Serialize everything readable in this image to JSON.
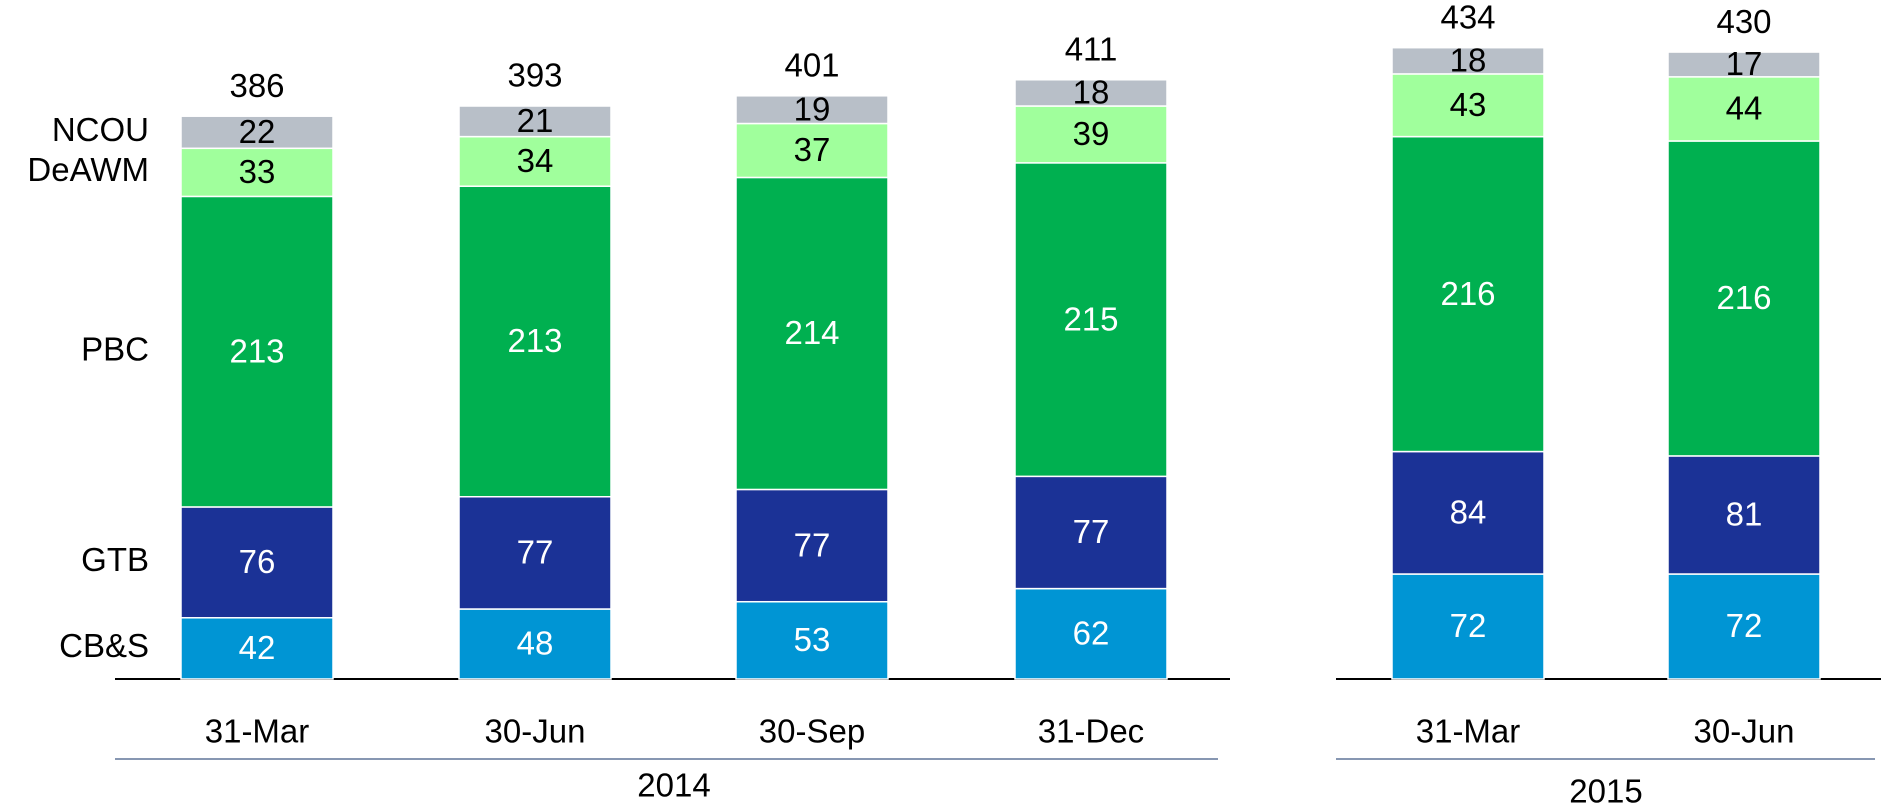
{
  "chart_data": {
    "type": "stacked_bar",
    "groups": [
      {
        "label": "2014",
        "categories": [
          "31-Mar",
          "30-Jun",
          "30-Sep",
          "31-Dec"
        ]
      },
      {
        "label": "2015",
        "categories": [
          "31-Mar",
          "30-Jun"
        ]
      }
    ],
    "series": [
      {
        "name": "CB&S",
        "color": "#0095d4",
        "label_color": "#ffffff",
        "values": [
          42,
          48,
          53,
          62,
          72,
          72
        ]
      },
      {
        "name": "GTB",
        "color": "#1b3296",
        "label_color": "#ffffff",
        "values": [
          76,
          77,
          77,
          77,
          84,
          81
        ]
      },
      {
        "name": "PBC",
        "color": "#00b050",
        "label_color": "#ffffff",
        "values": [
          213,
          213,
          214,
          215,
          216,
          216
        ]
      },
      {
        "name": "DeAWM",
        "color": "#a0ff9c",
        "label_color": "#000000",
        "values": [
          33,
          34,
          37,
          39,
          43,
          44
        ]
      },
      {
        "name": "NCOU",
        "color": "#b8bfc8",
        "label_color": "#000000",
        "values": [
          22,
          21,
          19,
          18,
          18,
          17
        ]
      }
    ],
    "totals": [
      386,
      393,
      401,
      411,
      434,
      430
    ]
  }
}
